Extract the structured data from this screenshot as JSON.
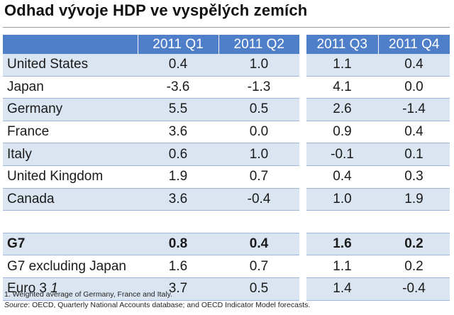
{
  "title": "Odhad vývoje HDP ve vyspělých zemích",
  "chart_data": {
    "type": "table",
    "columns": [
      "2011 Q1",
      "2011 Q2",
      "2011 Q3",
      "2011 Q4"
    ],
    "rows": [
      {
        "label": "United States",
        "values": [
          "0.4",
          "1.0",
          "1.1",
          "0.4"
        ]
      },
      {
        "label": "Japan",
        "values": [
          "-3.6",
          "-1.3",
          "4.1",
          "0.0"
        ]
      },
      {
        "label": "Germany",
        "values": [
          "5.5",
          "0.5",
          "2.6",
          "-1.4"
        ]
      },
      {
        "label": "France",
        "values": [
          "3.6",
          "0.0",
          "0.9",
          "0.4"
        ]
      },
      {
        "label": "Italy",
        "values": [
          "0.6",
          "1.0",
          "-0.1",
          "0.1"
        ]
      },
      {
        "label": "United Kingdom",
        "values": [
          "1.9",
          "0.7",
          "0.4",
          "0.3"
        ]
      },
      {
        "label": "Canada",
        "values": [
          "3.6",
          "-0.4",
          "1.0",
          "1.9"
        ]
      },
      {
        "label": "",
        "values": [
          "",
          "",
          "",
          ""
        ]
      },
      {
        "label": "G7",
        "values": [
          "0.8",
          "0.4",
          "1.6",
          "0.2"
        ],
        "bold": true
      },
      {
        "label": "G7 excluding Japan",
        "values": [
          "1.6",
          "0.7",
          "1.1",
          "0.2"
        ]
      },
      {
        "label": "Euro 3",
        "label_sup": "1",
        "values": [
          "3.7",
          "0.5",
          "1.4",
          "-0.4"
        ]
      }
    ]
  },
  "footnote": "1.   Weighted average of Germany, France and Italy.",
  "source_label": "Source",
  "source_text": ": OECD, Quarterly National Accounts database; and OECD Indicator Model forecasts."
}
